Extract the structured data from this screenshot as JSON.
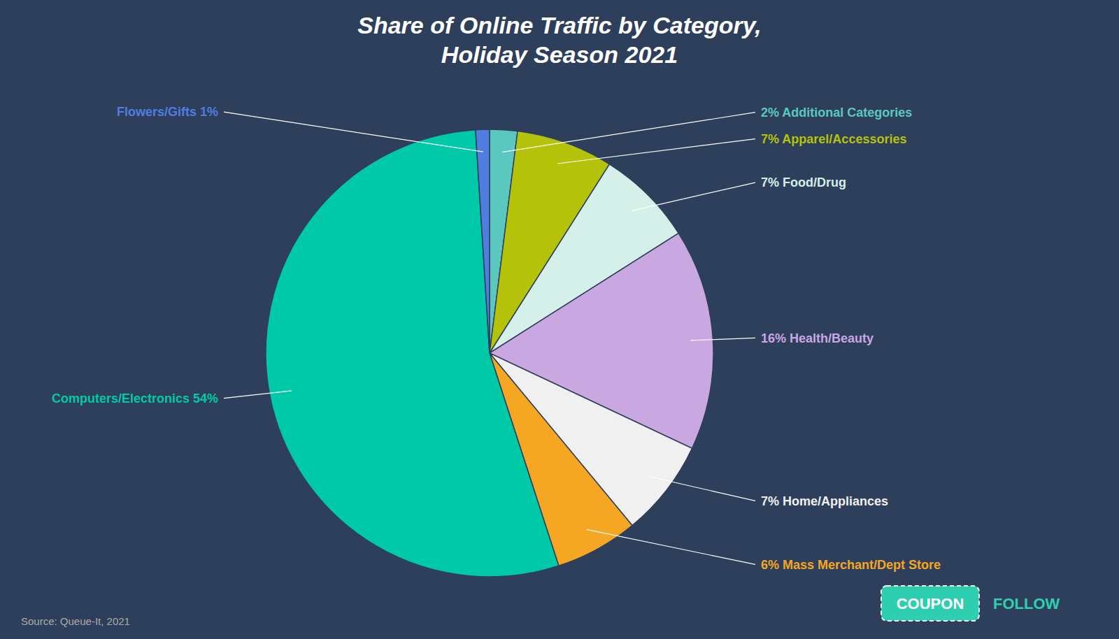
{
  "chart_data": {
    "type": "pie",
    "title": "Share of Online Traffic by Category,\nHoliday Season 2021",
    "values": [
      2,
      7,
      7,
      16,
      7,
      6,
      54,
      1
    ],
    "value_labels": [
      "2% Additional Categories",
      "7% Apparel/Accessories",
      "7% Food/Drug",
      "16% Health/Beauty",
      "7% Home/Appliances",
      "6% Mass Merchant/Dept Store",
      "Computers/Electronics 54%",
      "Flowers/Gifts 1%"
    ],
    "colors": [
      "#5bc8c0",
      "#b5c20a",
      "#d4f0e8",
      "#c9a7e0",
      "#f0f0f0",
      "#f5a623",
      "#00c9a7",
      "#4f7de0"
    ],
    "data_labels": true,
    "annotations": [
      {
        "text": "Source: Queue-It, 2021"
      },
      {
        "text": "COUPON",
        "color": "#2ecfb0"
      },
      {
        "text": "FOLLOW",
        "color": "#2ecfb0"
      }
    ]
  }
}
